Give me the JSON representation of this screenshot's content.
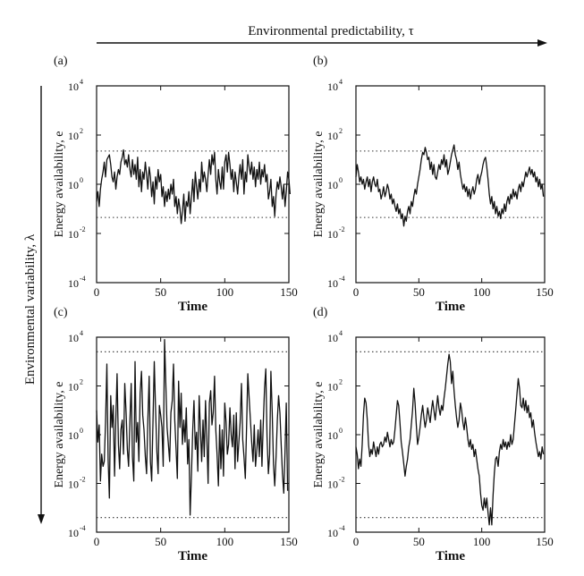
{
  "figure": {
    "top_axis_label": "Environmental predictability, τ",
    "side_axis_label": "Environmental variability, λ",
    "tick_base": "10"
  },
  "chart_data": [
    {
      "type": "line",
      "panel_label": "(a)",
      "xlabel": "Time",
      "ylabel": "Energy availability, e",
      "xlim": [
        0,
        150
      ],
      "ylim_log10": [
        -4,
        4
      ],
      "log_y": true,
      "x_ticks": [
        0,
        50,
        100,
        150
      ],
      "y_tick_exponents": [
        4,
        2,
        0,
        -2,
        -4
      ],
      "reference_lines_log10": [
        1.35,
        -1.35
      ],
      "series": [
        {
          "x_step": 1,
          "log10_values": [
            -0.7,
            -0.3,
            -0.9,
            -0.2,
            0.2,
            0.5,
            0.9,
            0.3,
            1.0,
            1.1,
            1.2,
            0.8,
            0.3,
            0.1,
            0.5,
            -0.2,
            0.3,
            0.6,
            0.4,
            0.9,
            1.1,
            1.4,
            0.8,
            1.0,
            0.7,
            1.2,
            0.6,
            0.3,
            1.0,
            0.4,
            0.8,
            0.2,
            1.1,
            -0.1,
            0.6,
            -0.3,
            0.5,
            0.2,
            0.9,
            0.4,
            -0.2,
            0.7,
            0.3,
            -0.5,
            0.1,
            -0.8,
            0.3,
            -0.2,
            0.6,
            0.1,
            0.4,
            -0.5,
            -0.1,
            -0.9,
            -0.3,
            -0.7,
            -0.2,
            -0.6,
            0.0,
            -0.4,
            0.2,
            -0.9,
            -0.5,
            -1.2,
            -0.6,
            -1.0,
            -1.6,
            -1.1,
            -0.4,
            -1.5,
            -0.7,
            -0.9,
            -0.3,
            -1.2,
            -0.5,
            0.2,
            -0.7,
            0.5,
            -0.1,
            -0.6,
            0.2,
            -0.3,
            0.9,
            0.1,
            0.5,
            0.2,
            -0.3,
            0.4,
            1.0,
            0.4,
            1.2,
            0.8,
            1.3,
            0.2,
            -0.4,
            0.6,
            0.1,
            -0.2,
            0.7,
            -0.2,
            0.9,
            1.2,
            0.5,
            1.3,
            0.8,
            0.2,
            0.6,
            -0.3,
            0.5,
            0.1,
            -0.4,
            0.3,
            0.8,
            0.2,
            1.0,
            -0.4,
            0.5,
            0.1,
            1.2,
            0.7,
            0.4,
            0.9,
            0.2,
            0.7,
            -0.1,
            0.6,
            0.2,
            0.9,
            0.0,
            0.6,
            0.3,
            0.8,
            0.1,
            0.4,
            -0.6,
            -0.3,
            0.2,
            -0.9,
            -0.5,
            -1.3,
            -0.4,
            0.1,
            -0.2,
            0.3,
            -0.1,
            -0.6,
            0.0,
            -0.9,
            -0.3,
            0.5,
            0.2,
            -0.4
          ]
        }
      ]
    },
    {
      "type": "line",
      "panel_label": "(b)",
      "xlabel": "Time",
      "ylabel": "Energy availability, e",
      "xlim": [
        0,
        150
      ],
      "ylim_log10": [
        -4,
        4
      ],
      "log_y": true,
      "x_ticks": [
        0,
        50,
        100,
        150
      ],
      "y_tick_exponents": [
        4,
        2,
        0,
        -2,
        -4
      ],
      "reference_lines_log10": [
        1.35,
        -1.35
      ],
      "series": [
        {
          "x_step": 1,
          "log10_values": [
            0.3,
            0.8,
            0.5,
            0.1,
            0.3,
            0.0,
            0.2,
            -0.2,
            0.1,
            0.3,
            -0.1,
            0.2,
            -0.3,
            0.1,
            0.3,
            0.0,
            -0.1,
            0.2,
            -0.3,
            -0.2,
            -0.6,
            -0.4,
            -0.1,
            -0.5,
            -0.3,
            0.0,
            -0.2,
            -0.6,
            -0.4,
            -0.8,
            -0.6,
            -0.9,
            -1.1,
            -0.8,
            -1.2,
            -1.0,
            -1.4,
            -1.2,
            -1.7,
            -1.3,
            -1.5,
            -1.1,
            -0.9,
            -1.2,
            -0.7,
            -0.9,
            -0.5,
            -0.2,
            -0.4,
            0.0,
            0.3,
            0.6,
            1.0,
            1.3,
            1.2,
            1.5,
            1.3,
            1.0,
            1.1,
            0.6,
            0.9,
            0.4,
            0.8,
            0.3,
            0.2,
            0.5,
            0.8,
            0.6,
            1.0,
            0.8,
            1.2,
            0.7,
            1.0,
            0.4,
            0.6,
            0.9,
            1.2,
            1.4,
            1.6,
            1.2,
            1.0,
            0.6,
            0.9,
            0.4,
            0.1,
            -0.2,
            0.0,
            -0.3,
            -0.1,
            -0.5,
            -0.2,
            -0.6,
            -0.3,
            -0.1,
            -0.4,
            -0.2,
            0.2,
            0.4,
            0.0,
            0.3,
            0.5,
            0.8,
            1.0,
            1.1,
            0.7,
            0.2,
            -0.4,
            -0.8,
            -0.5,
            -1.0,
            -0.7,
            -1.2,
            -0.9,
            -1.3,
            -1.1,
            -1.4,
            -1.0,
            -1.2,
            -0.8,
            -1.1,
            -0.7,
            -0.5,
            -0.8,
            -0.4,
            -0.6,
            -0.2,
            -0.5,
            -0.3,
            -0.6,
            -0.2,
            0.0,
            -0.3,
            0.1,
            -0.1,
            0.2,
            0.5,
            0.3,
            0.5,
            0.7,
            0.4,
            0.6,
            0.3,
            0.5,
            0.1,
            0.3,
            -0.1,
            0.2,
            -0.2,
            0.0,
            -0.5
          ]
        }
      ]
    },
    {
      "type": "line",
      "panel_label": "(c)",
      "xlabel": "Time",
      "ylabel": "Energy availability, e",
      "xlim": [
        0,
        150
      ],
      "ylim_log10": [
        -4,
        4
      ],
      "log_y": true,
      "x_ticks": [
        0,
        50,
        100,
        150
      ],
      "y_tick_exponents": [
        4,
        2,
        0,
        -2,
        -4
      ],
      "reference_lines_log10": [
        3.4,
        -3.4
      ],
      "series": [
        {
          "x_step": 1,
          "log10_values": [
            1.0,
            -0.3,
            0.4,
            -1.9,
            -0.8,
            -1.3,
            -1.1,
            0.5,
            2.9,
            -1.0,
            -2.6,
            1.6,
            0.3,
            1.2,
            -1.7,
            0.6,
            2.5,
            -0.4,
            -1.4,
            0.2,
            0.6,
            -0.8,
            2.1,
            0.9,
            -0.6,
            -1.3,
            0.6,
            2.1,
            -0.9,
            -1.9,
            3.0,
            -0.3,
            0.5,
            -1.1,
            1.7,
            2.6,
            0.8,
            0.2,
            -0.9,
            -1.6,
            0.6,
            2.4,
            -1.1,
            -1.9,
            0.6,
            3.0,
            1.1,
            -0.7,
            -1.6,
            1.2,
            0.8,
            0.3,
            -1.3,
            3.9,
            2.1,
            0.3,
            -0.4,
            -1.1,
            0.9,
            1.4,
            2.9,
            0.6,
            -0.6,
            -1.8,
            2.2,
            0.3,
            1.7,
            -0.4,
            0.6,
            -0.3,
            1.1,
            -1.2,
            -0.2,
            -3.3,
            -1.6,
            0.2,
            1.4,
            -0.6,
            0.1,
            -1.5,
            1.6,
            0.2,
            -1.1,
            0.6,
            -0.9,
            1.4,
            -0.2,
            -2.0,
            1.3,
            1.8,
            0.4,
            0.9,
            2.4,
            0.2,
            -0.8,
            -2.1,
            0.4,
            -1.4,
            0.2,
            -1.7,
            1.3,
            0.5,
            -0.8,
            -0.4,
            1.1,
            0.0,
            -0.5,
            0.8,
            -1.4,
            0.9,
            -1.1,
            -0.3,
            0.5,
            2.1,
            -0.2,
            -0.9,
            -1.8,
            0.3,
            2.5,
            1.5,
            0.6,
            -0.3,
            -1.1,
            0.4,
            -1.3,
            -0.6,
            0.2,
            -0.9,
            0.6,
            -1.3,
            0.4,
            1.9,
            2.7,
            -0.1,
            -1.6,
            -0.8,
            2.6,
            0.9,
            -1.2,
            -2.1,
            -0.9,
            0.6,
            1.6,
            0.9,
            -0.4,
            -1.6,
            -2.4,
            -0.7,
            1.3,
            -2.3
          ]
        }
      ]
    },
    {
      "type": "line",
      "panel_label": "(d)",
      "xlabel": "Time",
      "ylabel": "Energy availability, e",
      "xlim": [
        0,
        150
      ],
      "ylim_log10": [
        -4,
        4
      ],
      "log_y": true,
      "x_ticks": [
        0,
        50,
        100,
        150
      ],
      "y_tick_exponents": [
        4,
        2,
        0,
        -2,
        -4
      ],
      "reference_lines_log10": [
        3.4,
        -3.4
      ],
      "series": [
        {
          "x_step": 1,
          "log10_values": [
            -0.5,
            -0.8,
            -1.4,
            -1.0,
            -1.3,
            -0.4,
            0.8,
            1.5,
            1.3,
            0.6,
            -0.4,
            -0.9,
            -0.6,
            -0.8,
            -0.3,
            -0.6,
            -0.9,
            -0.5,
            -0.8,
            -0.4,
            -0.3,
            -0.5,
            -0.4,
            -0.1,
            -0.3,
            0.1,
            -0.2,
            -0.5,
            -0.2,
            -0.4,
            -0.3,
            0.2,
            0.8,
            1.4,
            1.2,
            0.5,
            -0.3,
            -0.7,
            -1.2,
            -1.7,
            -1.3,
            -1.0,
            -0.5,
            -0.2,
            0.4,
            1.0,
            1.9,
            1.3,
            0.4,
            -0.4,
            -0.1,
            0.3,
            0.8,
            1.2,
            0.7,
            0.3,
            0.6,
            1.1,
            0.8,
            0.5,
            1.0,
            1.4,
            1.0,
            0.6,
            1.1,
            1.6,
            1.1,
            0.8,
            1.2,
            1.0,
            1.5,
            1.9,
            2.4,
            2.9,
            3.3,
            3.0,
            2.1,
            2.6,
            1.8,
            1.2,
            0.7,
            0.3,
            0.6,
            1.3,
            1.0,
            0.5,
            0.2,
            0.7,
            0.3,
            -0.2,
            -0.5,
            -0.2,
            -0.6,
            -0.4,
            -0.9,
            -0.6,
            -1.0,
            -1.4,
            -1.7,
            -2.4,
            -2.9,
            -3.1,
            -2.6,
            -3.0,
            -2.6,
            -3.2,
            -3.7,
            -3.0,
            -3.7,
            -2.5,
            -1.6,
            -1.0,
            -0.9,
            -1.3,
            -0.7,
            -0.4,
            -0.6,
            -0.2,
            -0.5,
            -0.3,
            -0.6,
            -0.3,
            -0.5,
            0.0,
            -0.4,
            -0.2,
            0.4,
            1.0,
            1.7,
            2.3,
            1.9,
            1.2,
            1.1,
            1.5,
            1.0,
            1.4,
            0.9,
            1.2,
            0.7,
            0.9,
            0.3,
            0.6,
            0.1,
            -0.3,
            -0.6,
            -0.9,
            -0.7,
            -1.0,
            -0.5,
            -0.8
          ]
        }
      ]
    }
  ]
}
